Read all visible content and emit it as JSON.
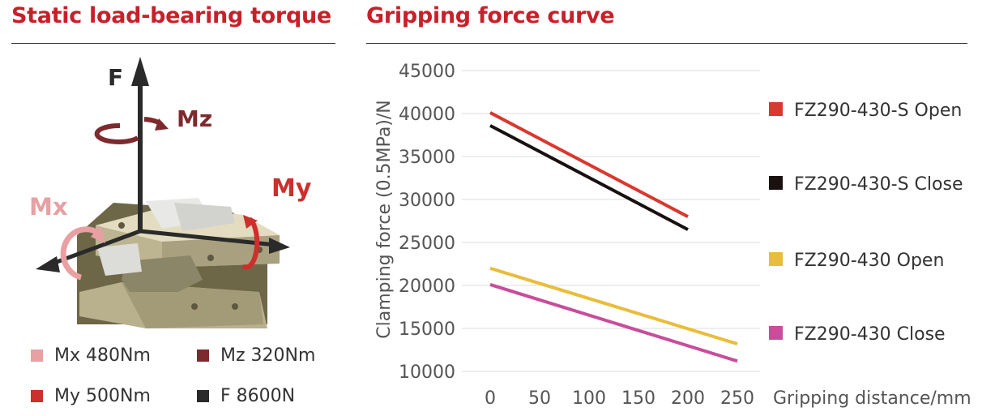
{
  "left_panel": {
    "title": "Static load-bearing torque",
    "axis_labels": {
      "f": "F",
      "mz": "Mz",
      "my": "My",
      "mx": "Mx"
    },
    "colors": {
      "mx": "#e8a0a3",
      "mz": "#7d2a2e",
      "my": "#cc2f2c",
      "f": "#2a2a2a"
    },
    "legend": [
      {
        "label": "Mx  480Nm",
        "color": "#e8a0a3"
      },
      {
        "label": "Mz  320Nm",
        "color": "#7d2a2e"
      },
      {
        "label": "My  500Nm",
        "color": "#cc2f2c"
      },
      {
        "label": "F  8600N",
        "color": "#2a2a2a"
      }
    ]
  },
  "right_panel": {
    "title": "Gripping force curve"
  },
  "chart_data": {
    "type": "line",
    "title": "Gripping force curve",
    "xlabel": "Gripping distance/mm",
    "ylabel": "Clamping force (0.5MPa)/N",
    "xlim": [
      0,
      250
    ],
    "ylim": [
      10000,
      45000
    ],
    "xticks": [
      0,
      50,
      100,
      150,
      200,
      250
    ],
    "yticks": [
      10000,
      15000,
      20000,
      25000,
      30000,
      35000,
      40000,
      45000
    ],
    "grid": "horizontal",
    "legend_position": "right",
    "series": [
      {
        "name": "FZ290-430-S Open",
        "color": "#d9382e",
        "x": [
          0,
          200
        ],
        "y": [
          40100,
          28000
        ]
      },
      {
        "name": "FZ290-430-S Close",
        "color": "#1a1010",
        "x": [
          0,
          200
        ],
        "y": [
          38600,
          26500
        ]
      },
      {
        "name": "FZ290-430  Open",
        "color": "#e9bd3b",
        "x": [
          0,
          250
        ],
        "y": [
          22000,
          13200
        ]
      },
      {
        "name": "FZ290-430  Close",
        "color": "#c84d9b",
        "x": [
          0,
          250
        ],
        "y": [
          20100,
          11200
        ]
      }
    ]
  }
}
